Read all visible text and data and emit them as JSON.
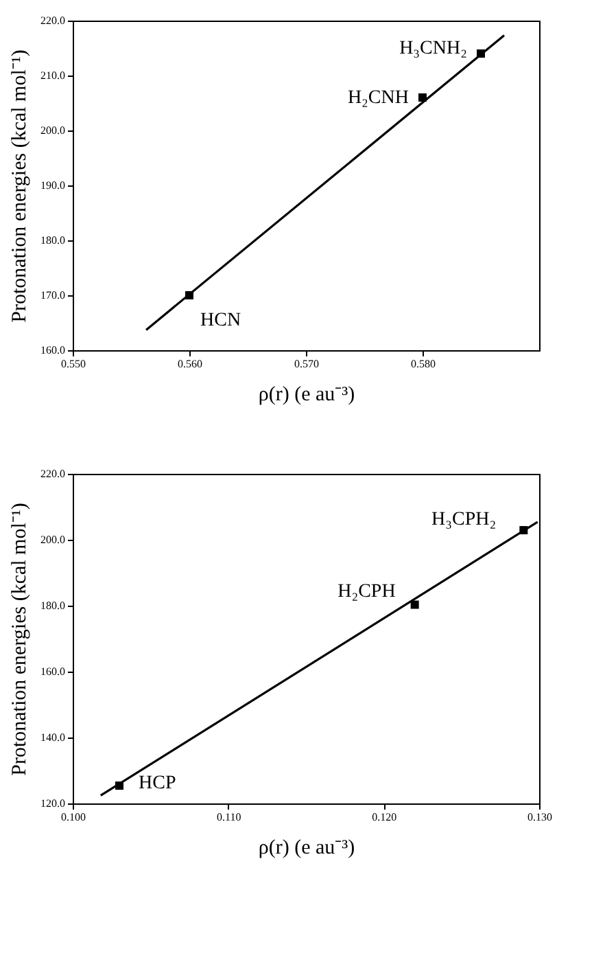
{
  "chart_data": [
    {
      "type": "scatter",
      "xlabel": "ρ(r) (e au⁻³)",
      "ylabel": "Protonation energies (kcal mol⁻¹)",
      "xlim": [
        0.55,
        0.59
      ],
      "ylim": [
        160,
        220
      ],
      "xticks": [
        {
          "value": 0.55,
          "label": "0.550"
        },
        {
          "value": 0.56,
          "label": "0.560"
        },
        {
          "value": 0.57,
          "label": "0.570"
        },
        {
          "value": 0.58,
          "label": "0.580"
        }
      ],
      "yticks": [
        {
          "value": 160,
          "label": "160.0"
        },
        {
          "value": 170,
          "label": "170.0"
        },
        {
          "value": 180,
          "label": "180.0"
        },
        {
          "value": 190,
          "label": "190.0"
        },
        {
          "value": 200,
          "label": "200.0"
        },
        {
          "value": 210,
          "label": "210.0"
        },
        {
          "value": 220,
          "label": "220.0"
        }
      ],
      "grid": false,
      "series": [
        {
          "color": "#000000",
          "marker": "square",
          "x": [
            0.56,
            0.58,
            0.585
          ],
          "values": [
            170.0,
            206.0,
            214.0
          ]
        },
        {
          "type": "line",
          "color": "#000000",
          "marker": "none",
          "line_style": "solid",
          "x": [
            0.5563,
            0.587
          ],
          "values": [
            163.7,
            217.3
          ]
        }
      ],
      "annotations": [
        {
          "text": "HCN",
          "x": 0.56,
          "y": 170.0
        },
        {
          "text": "H₂CNH",
          "x": 0.58,
          "y": 206.0
        },
        {
          "text": "H₃CNH₂",
          "x": 0.585,
          "y": 214.0
        }
      ]
    },
    {
      "type": "scatter",
      "xlabel": "ρ(r) (e au⁻³)",
      "ylabel": "Protonation energies (kcal mol⁻¹)",
      "xlim": [
        0.1,
        0.13
      ],
      "ylim": [
        120,
        220
      ],
      "xticks": [
        {
          "value": 0.1,
          "label": "0.100"
        },
        {
          "value": 0.11,
          "label": "0.110"
        },
        {
          "value": 0.12,
          "label": "0.120"
        },
        {
          "value": 0.13,
          "label": "0.130"
        }
      ],
      "yticks": [
        {
          "value": 120,
          "label": "120.0"
        },
        {
          "value": 140,
          "label": "140.0"
        },
        {
          "value": 160,
          "label": "160.0"
        },
        {
          "value": 180,
          "label": "180.0"
        },
        {
          "value": 200,
          "label": "200.0"
        },
        {
          "value": 220,
          "label": "220.0"
        }
      ],
      "grid": false,
      "series": [
        {
          "color": "#000000",
          "marker": "square",
          "x": [
            0.103,
            0.122,
            0.129
          ],
          "values": [
            125.4,
            180.3,
            202.9
          ]
        },
        {
          "type": "line",
          "color": "#000000",
          "marker": "none",
          "line_style": "solid",
          "x": [
            0.1018,
            0.1299
          ],
          "values": [
            122.4,
            205.4
          ]
        }
      ],
      "annotations": [
        {
          "text": "HCP",
          "x": 0.103,
          "y": 125.4
        },
        {
          "text": "H₂CPH",
          "x": 0.122,
          "y": 180.3
        },
        {
          "text": "H₃CPH₂",
          "x": 0.129,
          "y": 202.9
        }
      ]
    }
  ]
}
